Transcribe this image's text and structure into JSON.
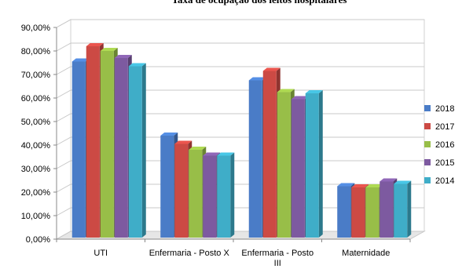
{
  "chart_data": {
    "type": "bar",
    "title": "Taxa de ocupação dos leitos hospitalares",
    "categories": [
      "UTI",
      "Enfermaria - Posto X",
      "Enfermaria - Posto III",
      "Maternidade"
    ],
    "category_lines": [
      [
        "UTI"
      ],
      [
        "Enfermaria - Posto X"
      ],
      [
        "Enfermaria - Posto",
        "III"
      ],
      [
        "Maternidade"
      ]
    ],
    "series": [
      {
        "name": "2018",
        "values": [
          75.5,
          44.0,
          67.5,
          22.5
        ]
      },
      {
        "name": "2017",
        "values": [
          82.0,
          40.5,
          71.5,
          22.0
        ]
      },
      {
        "name": "2016",
        "values": [
          80.0,
          38.0,
          62.5,
          22.0
        ]
      },
      {
        "name": "2015",
        "values": [
          77.0,
          35.5,
          59.5,
          24.5
        ]
      },
      {
        "name": "2014",
        "values": [
          73.5,
          35.5,
          62.0,
          23.5
        ]
      }
    ],
    "series_colors": [
      "#4a7cc7",
      "#cc4a44",
      "#98be48",
      "#7d5aa0",
      "#3fadc8"
    ],
    "ylim": [
      0,
      90
    ],
    "yticks": [
      "0,00%",
      "10,00%",
      "20,00%",
      "30,00%",
      "40,00%",
      "50,00%",
      "60,00%",
      "70,00%",
      "80,00%",
      "90,00%"
    ],
    "grid": true,
    "legend_position": "right",
    "style": "3d-clustered-column"
  }
}
